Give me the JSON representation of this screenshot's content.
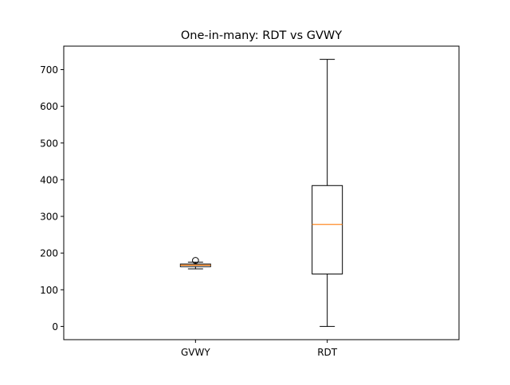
{
  "chart_data": {
    "type": "box",
    "title": "One-in-many: RDT vs GVWY",
    "xlabel": "",
    "ylabel": "",
    "categories": [
      "GVWY",
      "RDT"
    ],
    "boxes": [
      {
        "name": "GVWY",
        "whisker_low": 157,
        "q1": 163,
        "median": 167,
        "q3": 170,
        "whisker_high": 175,
        "outliers": [
          180
        ]
      },
      {
        "name": "RDT",
        "whisker_low": 0,
        "q1": 143,
        "median": 278,
        "q3": 384,
        "whisker_high": 728,
        "outliers": []
      }
    ],
    "ylim": [
      -36,
      764
    ],
    "yticks": [
      0,
      100,
      200,
      300,
      400,
      500,
      600,
      700
    ],
    "grid": false,
    "legend": "none",
    "colors": {
      "box": "#000000",
      "median": "#ff7f0e",
      "background": "#ffffff"
    }
  }
}
